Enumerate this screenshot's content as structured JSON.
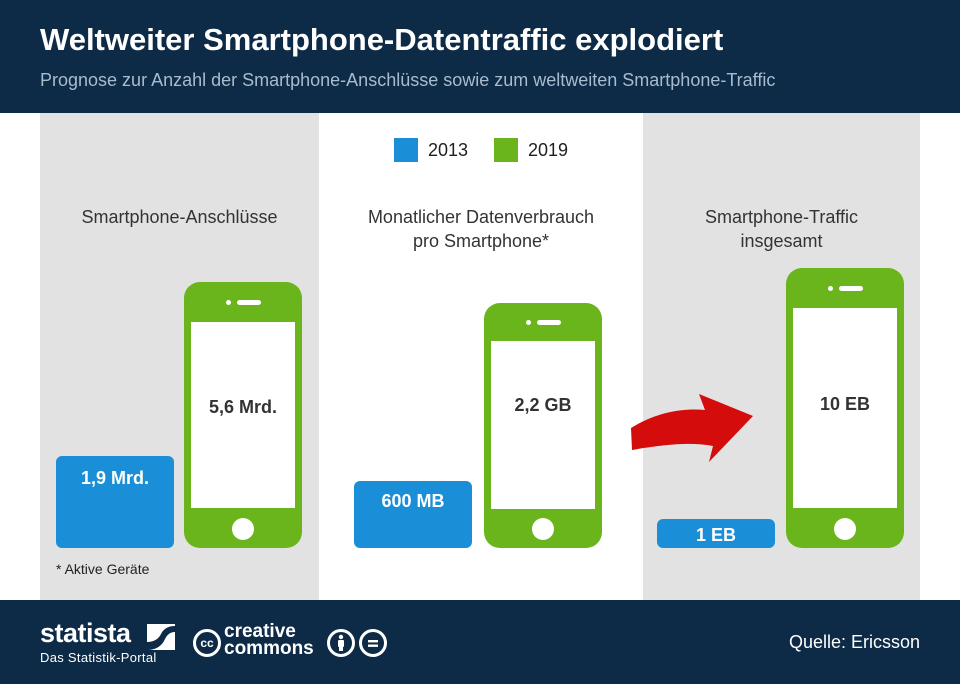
{
  "header": {
    "title": "Weltweiter Smartphone-Datentraffic explodiert",
    "subtitle": "Prognose zur Anzahl der Smartphone-Anschlüsse sowie zum weltweiten Smartphone-Traffic"
  },
  "legend": {
    "items": [
      {
        "label": "2013",
        "color": "#1a8fd8"
      },
      {
        "label": "2019",
        "color": "#6ab51c"
      }
    ]
  },
  "chart_data": {
    "type": "bar",
    "categories": [
      "Smartphone-Anschlüsse",
      "Monatlicher Datenverbrauch pro Smartphone*",
      "Smartphone-Traffic insgesamt"
    ],
    "series": [
      {
        "name": "2013",
        "values": [
          1.9,
          600,
          1
        ],
        "units": [
          "Mrd.",
          "MB",
          "EB"
        ],
        "labels": [
          "1,9 Mrd.",
          "600 MB",
          "1 EB"
        ]
      },
      {
        "name": "2019",
        "values": [
          5.6,
          2.2,
          10
        ],
        "units": [
          "Mrd.",
          "GB",
          "EB"
        ],
        "labels": [
          "5,6 Mrd.",
          "2,2 GB",
          "10 EB"
        ]
      }
    ]
  },
  "panels": [
    {
      "label_lines": [
        "Smartphone-Anschlüsse"
      ]
    },
    {
      "label_lines": [
        "Monatlicher Datenverbrauch",
        "pro Smartphone*"
      ]
    },
    {
      "label_lines": [
        "Smartphone-Traffic",
        "insgesamt"
      ]
    }
  ],
  "footnote": "* Aktive Geräte",
  "footer": {
    "brand": "statista",
    "brand_sub": "Das Statistik-Portal",
    "cc_badge": "cc",
    "cc_line1": "creative",
    "cc_line2": "commons",
    "source": "Quelle: Ericsson"
  },
  "colors": {
    "header_bg": "#0d2a47",
    "panel_grey": "#e2e2e2",
    "bar_2013": "#1a8fd8",
    "phone_2019": "#6ab51c",
    "arrow_red": "#d40c0c"
  }
}
